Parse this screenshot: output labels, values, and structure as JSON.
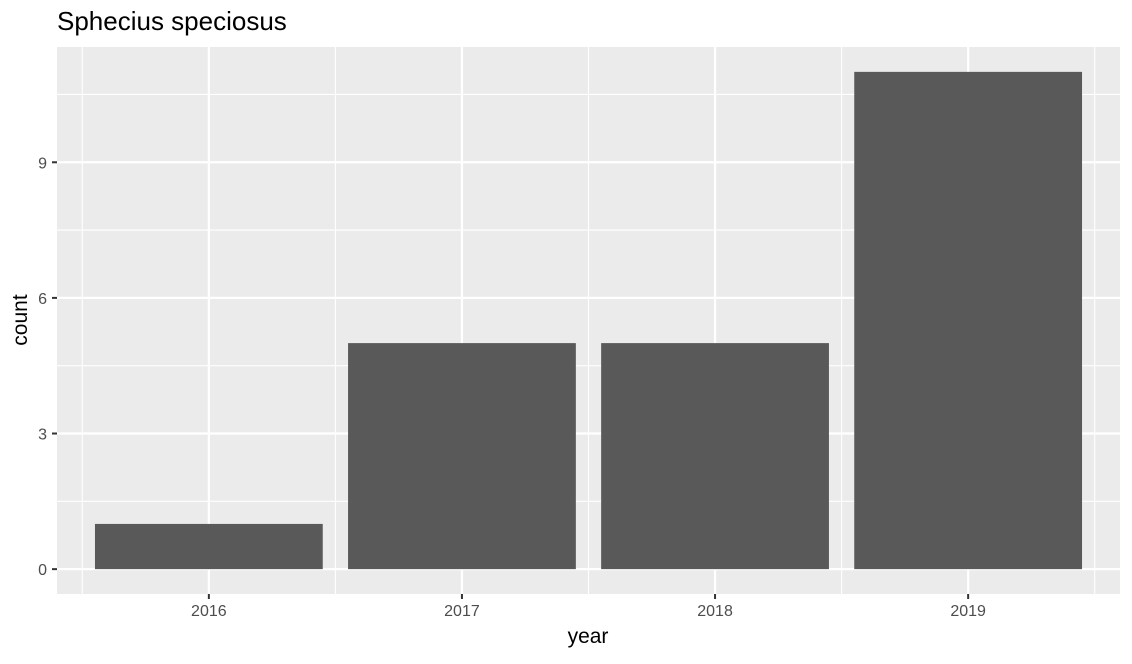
{
  "chart_data": {
    "type": "bar",
    "title": "Sphecius speciosus",
    "xlabel": "year",
    "ylabel": "count",
    "categories": [
      "2016",
      "2017",
      "2018",
      "2019"
    ],
    "values": [
      1,
      5,
      5,
      11
    ],
    "yticks": [
      0,
      3,
      6,
      9
    ],
    "ylim": [
      -0.55,
      11.55
    ],
    "grid": true,
    "colors": {
      "bar": "#595959",
      "panel": "#ebebeb",
      "grid": "#ffffff",
      "tick": "#333333"
    }
  }
}
